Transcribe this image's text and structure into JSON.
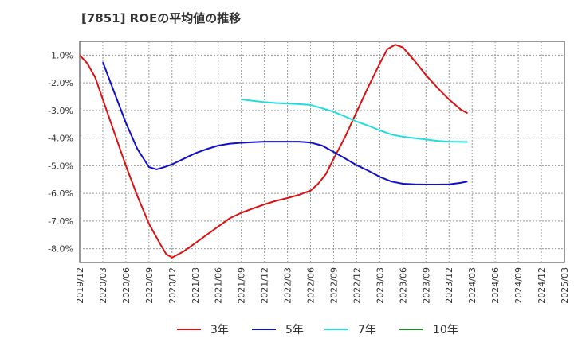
{
  "chart_data": {
    "type": "line",
    "title": "[7851]  ROEの平均値の推移",
    "xlabel": "",
    "ylabel": "",
    "x_ticks": [
      "2019/12",
      "2020/03",
      "2020/06",
      "2020/09",
      "2020/12",
      "2021/03",
      "2021/06",
      "2021/09",
      "2021/12",
      "2022/03",
      "2022/06",
      "2022/09",
      "2022/12",
      "2023/03",
      "2023/06",
      "2023/09",
      "2023/12",
      "2024/03",
      "2024/06",
      "2024/09",
      "2024/12",
      "2025/03"
    ],
    "y_ticks": [
      -1.0,
      -2.0,
      -3.0,
      -4.0,
      -5.0,
      -6.0,
      -7.0,
      -8.0
    ],
    "y_tick_labels": [
      "-1.0%",
      "-2.0%",
      "-3.0%",
      "-4.0%",
      "-5.0%",
      "-6.0%",
      "-7.0%",
      "-8.0%"
    ],
    "ylim": [
      -8.5,
      -0.5
    ],
    "grid": true,
    "legend_position": "bottom",
    "series": [
      {
        "name": "3年",
        "color": "#dd1111",
        "points": [
          [
            0,
            -1.0
          ],
          [
            0.33,
            -1.3
          ],
          [
            0.67,
            -1.8
          ],
          [
            1,
            -2.6
          ],
          [
            1.5,
            -3.8
          ],
          [
            2,
            -5.0
          ],
          [
            2.5,
            -6.1
          ],
          [
            3,
            -7.1
          ],
          [
            3.5,
            -7.85
          ],
          [
            3.75,
            -8.2
          ],
          [
            4,
            -8.32
          ],
          [
            4.5,
            -8.1
          ],
          [
            5,
            -7.8
          ],
          [
            5.5,
            -7.5
          ],
          [
            6,
            -7.2
          ],
          [
            6.5,
            -6.9
          ],
          [
            7,
            -6.7
          ],
          [
            7.5,
            -6.55
          ],
          [
            8,
            -6.4
          ],
          [
            8.5,
            -6.27
          ],
          [
            9,
            -6.17
          ],
          [
            9.5,
            -6.05
          ],
          [
            10,
            -5.9
          ],
          [
            10.33,
            -5.65
          ],
          [
            10.67,
            -5.3
          ],
          [
            11,
            -4.75
          ],
          [
            11.5,
            -3.95
          ],
          [
            12,
            -3.05
          ],
          [
            12.5,
            -2.15
          ],
          [
            13,
            -1.3
          ],
          [
            13.33,
            -0.78
          ],
          [
            13.67,
            -0.62
          ],
          [
            14,
            -0.72
          ],
          [
            14.5,
            -1.2
          ],
          [
            15,
            -1.72
          ],
          [
            15.5,
            -2.18
          ],
          [
            16,
            -2.6
          ],
          [
            16.5,
            -2.96
          ],
          [
            16.8,
            -3.1
          ]
        ]
      },
      {
        "name": "5年",
        "color": "#1010cc",
        "points": [
          [
            1,
            -1.25
          ],
          [
            1.5,
            -2.35
          ],
          [
            2,
            -3.45
          ],
          [
            2.5,
            -4.4
          ],
          [
            3,
            -5.05
          ],
          [
            3.33,
            -5.13
          ],
          [
            3.67,
            -5.05
          ],
          [
            4,
            -4.95
          ],
          [
            4.5,
            -4.75
          ],
          [
            5,
            -4.55
          ],
          [
            5.5,
            -4.4
          ],
          [
            6,
            -4.27
          ],
          [
            6.5,
            -4.2
          ],
          [
            7,
            -4.17
          ],
          [
            7.5,
            -4.15
          ],
          [
            8,
            -4.13
          ],
          [
            8.5,
            -4.13
          ],
          [
            9,
            -4.13
          ],
          [
            9.5,
            -4.13
          ],
          [
            10,
            -4.16
          ],
          [
            10.5,
            -4.27
          ],
          [
            11,
            -4.5
          ],
          [
            11.5,
            -4.74
          ],
          [
            12,
            -4.98
          ],
          [
            12.5,
            -5.18
          ],
          [
            13,
            -5.4
          ],
          [
            13.5,
            -5.57
          ],
          [
            14,
            -5.65
          ],
          [
            14.5,
            -5.67
          ],
          [
            15,
            -5.68
          ],
          [
            15.5,
            -5.68
          ],
          [
            16,
            -5.67
          ],
          [
            16.5,
            -5.62
          ],
          [
            16.8,
            -5.57
          ]
        ]
      },
      {
        "name": "7年",
        "color": "#22dddd",
        "points": [
          [
            7,
            -2.6
          ],
          [
            7.5,
            -2.65
          ],
          [
            8,
            -2.7
          ],
          [
            8.5,
            -2.73
          ],
          [
            9,
            -2.75
          ],
          [
            9.5,
            -2.77
          ],
          [
            10,
            -2.8
          ],
          [
            10.5,
            -2.92
          ],
          [
            11,
            -3.05
          ],
          [
            11.5,
            -3.22
          ],
          [
            12,
            -3.4
          ],
          [
            12.5,
            -3.55
          ],
          [
            13,
            -3.72
          ],
          [
            13.5,
            -3.87
          ],
          [
            14,
            -3.95
          ],
          [
            14.5,
            -4.0
          ],
          [
            15,
            -4.05
          ],
          [
            15.5,
            -4.1
          ],
          [
            16,
            -4.13
          ],
          [
            16.8,
            -4.14
          ]
        ]
      },
      {
        "name": "10年",
        "color": "#228822",
        "points": []
      }
    ]
  }
}
